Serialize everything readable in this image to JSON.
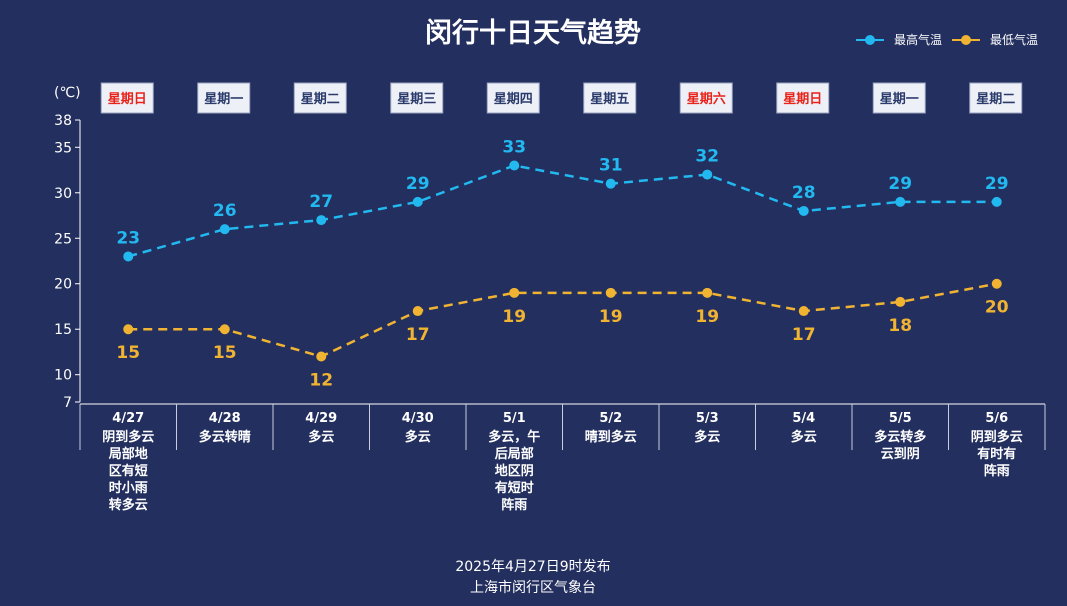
{
  "chart_data": {
    "type": "line",
    "title": "闵行十日天气趋势",
    "ylabel": "(℃)",
    "ylim": [
      7,
      38
    ],
    "yticks": [
      7,
      10,
      15,
      20,
      25,
      30,
      35,
      38
    ],
    "legend_position": "top-right",
    "categories": [
      "4/27",
      "4/28",
      "4/29",
      "4/30",
      "5/1",
      "5/2",
      "5/3",
      "5/4",
      "5/5",
      "5/6"
    ],
    "weekdays": [
      {
        "label": "星期日",
        "weekend": true
      },
      {
        "label": "星期一",
        "weekend": false
      },
      {
        "label": "星期二",
        "weekend": false
      },
      {
        "label": "星期三",
        "weekend": false
      },
      {
        "label": "星期四",
        "weekend": false
      },
      {
        "label": "星期五",
        "weekend": false
      },
      {
        "label": "星期六",
        "weekend": true
      },
      {
        "label": "星期日",
        "weekend": true
      },
      {
        "label": "星期一",
        "weekend": false
      },
      {
        "label": "星期二",
        "weekend": false
      }
    ],
    "weather": [
      [
        "阴到多云",
        "局部地",
        "区有短",
        "时小雨",
        "转多云"
      ],
      [
        "多云转晴"
      ],
      [
        "多云"
      ],
      [
        "多云"
      ],
      [
        "多云，午",
        "后局部",
        "地区阴",
        "有短时",
        "阵雨"
      ],
      [
        "晴到多云"
      ],
      [
        "多云"
      ],
      [
        "多云"
      ],
      [
        "多云转多",
        "云到阴"
      ],
      [
        "阴到多云",
        "有时有",
        "阵雨"
      ]
    ],
    "series": [
      {
        "name": "最高气温",
        "color": "#22b8f0",
        "values": [
          23,
          26,
          27,
          29,
          33,
          31,
          32,
          28,
          29,
          29
        ]
      },
      {
        "name": "最低气温",
        "color": "#f0b432",
        "values": [
          15,
          15,
          12,
          17,
          19,
          19,
          19,
          17,
          18,
          20
        ]
      }
    ]
  },
  "colors": {
    "background": "#232f5e",
    "weekend_text": "#e8231a",
    "weekday_text": "#2a3a6b"
  },
  "footer": {
    "issued": "2025年4月27日9时发布",
    "source": "上海市闵行区气象台"
  }
}
